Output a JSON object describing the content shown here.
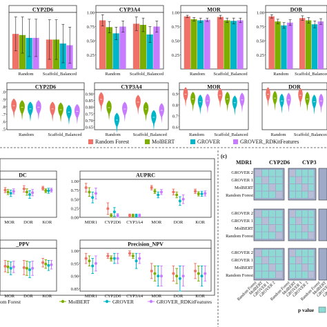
{
  "colors": {
    "Random Forest": "#F07167",
    "MolBERT": "#7CAE00",
    "GROVER": "#00B5C8",
    "GROVER_RDKitFeatures": "#C77CFF"
  },
  "legend": {
    "top": [
      "Random Forest",
      "MolBERT",
      "GROVER",
      "GROVER_RDKitFeatures"
    ],
    "bottom": [
      "andom Forest",
      "MolBERT",
      "GROVER",
      "GROVER_RDKitFeatures"
    ]
  },
  "panel_c": {
    "label": "(c)",
    "cols": [
      "MDR1",
      "CYP2D6",
      "CYP3"
    ],
    "rows": [
      "GROVER 2",
      "GROVER 1",
      "MolBERT",
      "Random Forest"
    ],
    "x_labels": [
      "Random Forest",
      "MolBERT",
      "GROVER 1",
      "GROVER 2"
    ],
    "legend_title": "p value"
  },
  "chart_data": [
    {
      "type": "bar",
      "title": "CYP2D6",
      "categories": [
        "Random",
        "Scaffold_Balanced"
      ],
      "yticks": [],
      "ylim": [
        0,
        1
      ],
      "series": [
        {
          "name": "Random Forest",
          "values": [
            0.62,
            0.52
          ],
          "err": [
            0.3,
            0.35
          ]
        },
        {
          "name": "MolBERT",
          "values": [
            0.6,
            0.52
          ],
          "err": [
            0.32,
            0.35
          ]
        },
        {
          "name": "GROVER",
          "values": [
            0.55,
            0.45
          ],
          "err": [
            0.33,
            0.34
          ]
        },
        {
          "name": "GROVER_RDKitFeatures",
          "values": [
            0.55,
            0.42
          ],
          "err": [
            0.33,
            0.32
          ]
        }
      ]
    },
    {
      "type": "bar",
      "title": "CYP3A4",
      "categories": [
        "Random",
        "Scaffold_Balanced"
      ],
      "yticks": [
        "0.25",
        "0.50",
        "0.75",
        "1.00"
      ],
      "ylim": [
        0,
        1
      ],
      "series": [
        {
          "name": "Random Forest",
          "values": [
            0.86,
            0.8
          ],
          "err": [
            0.1,
            0.12
          ]
        },
        {
          "name": "MolBERT",
          "values": [
            0.74,
            0.78
          ],
          "err": [
            0.1,
            0.12
          ]
        },
        {
          "name": "GROVER",
          "values": [
            0.63,
            0.61
          ],
          "err": [
            0.11,
            0.14
          ]
        },
        {
          "name": "GROVER_RDKitFeatures",
          "values": [
            0.75,
            0.75
          ],
          "err": [
            0.1,
            0.1
          ]
        }
      ]
    },
    {
      "type": "bar",
      "title": "MOR",
      "categories": [
        "Random",
        "Scaffold_Balanced"
      ],
      "yticks": [
        "0.25",
        "0.50",
        "0.75",
        "1.00"
      ],
      "ylim": [
        0,
        1
      ],
      "series": [
        {
          "name": "Random Forest",
          "values": [
            0.93,
            0.92
          ],
          "err": [
            0.02,
            0.03
          ]
        },
        {
          "name": "MolBERT",
          "values": [
            0.88,
            0.86
          ],
          "err": [
            0.03,
            0.04
          ]
        },
        {
          "name": "GROVER",
          "values": [
            0.86,
            0.85
          ],
          "err": [
            0.04,
            0.05
          ]
        },
        {
          "name": "GROVER_RDKitFeatures",
          "values": [
            0.87,
            0.86
          ],
          "err": [
            0.03,
            0.04
          ]
        }
      ]
    },
    {
      "type": "bar",
      "title": "DOR",
      "categories": [
        "Random",
        "Scaffold_Balanced"
      ],
      "yticks": [
        "0.25",
        "0.50",
        "0.75",
        "1.00"
      ],
      "ylim": [
        0,
        1
      ],
      "series": [
        {
          "name": "Random Forest",
          "values": [
            0.93,
            0.9
          ],
          "err": [
            0.03,
            0.04
          ]
        },
        {
          "name": "MolBERT",
          "values": [
            0.84,
            0.86
          ],
          "err": [
            0.04,
            0.05
          ]
        },
        {
          "name": "GROVER",
          "values": [
            0.77,
            0.79
          ],
          "err": [
            0.05,
            0.06
          ]
        },
        {
          "name": "GROVER_RDKitFeatures",
          "values": [
            0.82,
            0.84
          ],
          "err": [
            0.05,
            0.05
          ]
        }
      ]
    },
    {
      "type": "violin",
      "title": "CYP2D6",
      "categories": [
        "Random",
        "Scaffold_Balanced"
      ],
      "yticks": [
        ".0",
        ".9",
        ".8",
        ".7",
        ".6",
        ".5"
      ],
      "ylim": [
        0.5,
        1.0
      ],
      "series": [
        {
          "name": "Random Forest",
          "values": [
            0.8,
            0.76
          ]
        },
        {
          "name": "MolBERT",
          "values": [
            0.78,
            0.75
          ]
        },
        {
          "name": "GROVER",
          "values": [
            0.76,
            0.72
          ]
        },
        {
          "name": "GROVER_RDKitFeatures",
          "values": [
            0.78,
            0.73
          ]
        }
      ]
    },
    {
      "type": "violin",
      "title": "CYP3A4",
      "categories": [
        "Random",
        "Scaffold_Balanced"
      ],
      "yticks": [
        "0.90",
        "0.85",
        "0.80",
        "0.75",
        "0.70",
        "0.65"
      ],
      "ylim": [
        0.63,
        0.92
      ],
      "series": [
        {
          "name": "Random Forest",
          "values": [
            0.85,
            0.83
          ]
        },
        {
          "name": "MolBERT",
          "values": [
            0.79,
            0.78
          ]
        },
        {
          "name": "GROVER",
          "values": [
            0.7,
            0.72
          ]
        },
        {
          "name": "GROVER_RDKitFeatures",
          "values": [
            0.78,
            0.77
          ]
        }
      ]
    },
    {
      "type": "violin",
      "title": "MOR",
      "categories": [
        "Random",
        "Scaffold_Balanced"
      ],
      "yticks": [
        "0.9",
        "0.8",
        "0.7",
        "0.6"
      ],
      "ylim": [
        0.55,
        0.98
      ],
      "series": [
        {
          "name": "Random Forest",
          "values": [
            0.93,
            0.92
          ]
        },
        {
          "name": "MolBERT",
          "values": [
            0.88,
            0.88
          ]
        },
        {
          "name": "GROVER",
          "values": [
            0.85,
            0.84
          ]
        },
        {
          "name": "GROVER_RDKitFeatures",
          "values": [
            0.86,
            0.87
          ]
        }
      ]
    },
    {
      "type": "violin",
      "title": "DOR",
      "categories": [
        "Random",
        "Scaffold_Balanced"
      ],
      "yticks": [],
      "ylim": [
        0.55,
        0.98
      ],
      "series": [
        {
          "name": "Random Forest",
          "values": [
            0.93,
            0.92
          ]
        },
        {
          "name": "MolBERT",
          "values": [
            0.89,
            0.88
          ]
        },
        {
          "name": "GROVER",
          "values": [
            0.86,
            0.85
          ]
        },
        {
          "name": "GROVER_RDKitFeatures",
          "values": [
            0.87,
            0.86
          ]
        }
      ]
    },
    {
      "type": "scatter",
      "title": "DC",
      "categories": [
        "MOR",
        "DOR",
        "KOR"
      ],
      "yticks": [],
      "ylim": [
        0.4,
        1.0
      ],
      "series": [
        {
          "name": "Random Forest",
          "values": [
            0.83,
            0.85,
            0.86
          ],
          "err": [
            0.04,
            0.05,
            0.03
          ]
        },
        {
          "name": "MolBERT",
          "values": [
            0.8,
            0.8,
            0.82
          ],
          "err": [
            0.04,
            0.05,
            0.03
          ]
        },
        {
          "name": "GROVER",
          "values": [
            0.78,
            0.76,
            0.82
          ],
          "err": [
            0.05,
            0.06,
            0.04
          ]
        },
        {
          "name": "GROVER_RDKitFeatures",
          "values": [
            0.81,
            0.79,
            0.83
          ],
          "err": [
            0.04,
            0.05,
            0.03
          ]
        }
      ]
    },
    {
      "type": "scatter",
      "title": "AUPRC",
      "categories": [
        "MDR1",
        "CYP2D6",
        "CYP3A4",
        "MOR",
        "DOR",
        "KOR"
      ],
      "yticks": [
        "0.00",
        "0.25",
        "0.50",
        "0.75",
        "1.00"
      ],
      "ylim": [
        0,
        1.05
      ],
      "series": [
        {
          "name": "Random Forest",
          "values": [
            0.82,
            0.24,
            0.05,
            0.82,
            0.7,
            0.72
          ],
          "err": [
            0.12,
            0.16,
            0.04,
            0.06,
            0.08,
            0.06
          ]
        },
        {
          "name": "MolBERT",
          "values": [
            0.7,
            0.05,
            0.05,
            0.72,
            0.62,
            0.65
          ],
          "err": [
            0.12,
            0.05,
            0.04,
            0.06,
            0.08,
            0.06
          ]
        },
        {
          "name": "GROVER",
          "values": [
            0.55,
            0.15,
            0.05,
            0.62,
            0.45,
            0.65
          ],
          "err": [
            0.15,
            0.12,
            0.04,
            0.08,
            0.12,
            0.07
          ]
        },
        {
          "name": "GROVER_RDKitFeatures",
          "values": [
            0.66,
            0.05,
            0.05,
            0.7,
            0.5,
            0.66
          ],
          "err": [
            0.15,
            0.05,
            0.04,
            0.07,
            0.12,
            0.07
          ]
        }
      ]
    },
    {
      "type": "scatter",
      "title": "_PPV",
      "categories": [
        "MOR",
        "DOR",
        "KOR"
      ],
      "yticks": [],
      "ylim": [
        0.4,
        1.0
      ],
      "series": [
        {
          "name": "Random Forest",
          "values": [
            0.75,
            0.73,
            0.8
          ],
          "err": [
            0.08,
            0.1,
            0.06
          ]
        },
        {
          "name": "MolBERT",
          "values": [
            0.74,
            0.72,
            0.78
          ],
          "err": [
            0.08,
            0.1,
            0.06
          ]
        },
        {
          "name": "GROVER",
          "values": [
            0.72,
            0.7,
            0.76
          ],
          "err": [
            0.09,
            0.11,
            0.07
          ]
        },
        {
          "name": "GROVER_RDKitFeatures",
          "values": [
            0.74,
            0.72,
            0.77
          ],
          "err": [
            0.08,
            0.1,
            0.06
          ]
        }
      ]
    },
    {
      "type": "scatter",
      "title": "Precision_NPV",
      "categories": [
        "MDR1",
        "CYP2D6",
        "CYP3A4",
        "MOR",
        "DOR",
        "KOR"
      ],
      "yticks": [
        "0.85",
        "0.90",
        "0.95",
        "1.00"
      ],
      "ylim": [
        0.84,
        1.01
      ],
      "series": [
        {
          "name": "Random Forest",
          "values": [
            0.97,
            0.98,
            0.99,
            0.92,
            0.91,
            0.92
          ],
          "err": [
            0.02,
            0.01,
            0.01,
            0.03,
            0.03,
            0.03
          ]
        },
        {
          "name": "MolBERT",
          "values": [
            0.96,
            0.97,
            0.98,
            0.91,
            0.9,
            0.91
          ],
          "err": [
            0.02,
            0.01,
            0.01,
            0.03,
            0.03,
            0.03
          ]
        },
        {
          "name": "GROVER",
          "values": [
            0.94,
            0.97,
            0.96,
            0.9,
            0.89,
            0.9
          ],
          "err": [
            0.03,
            0.02,
            0.03,
            0.04,
            0.05,
            0.04
          ]
        },
        {
          "name": "GROVER_RDKitFeatures",
          "values": [
            0.95,
            0.97,
            0.97,
            0.9,
            0.9,
            0.91
          ],
          "err": [
            0.03,
            0.02,
            0.02,
            0.04,
            0.04,
            0.03
          ]
        }
      ]
    }
  ]
}
